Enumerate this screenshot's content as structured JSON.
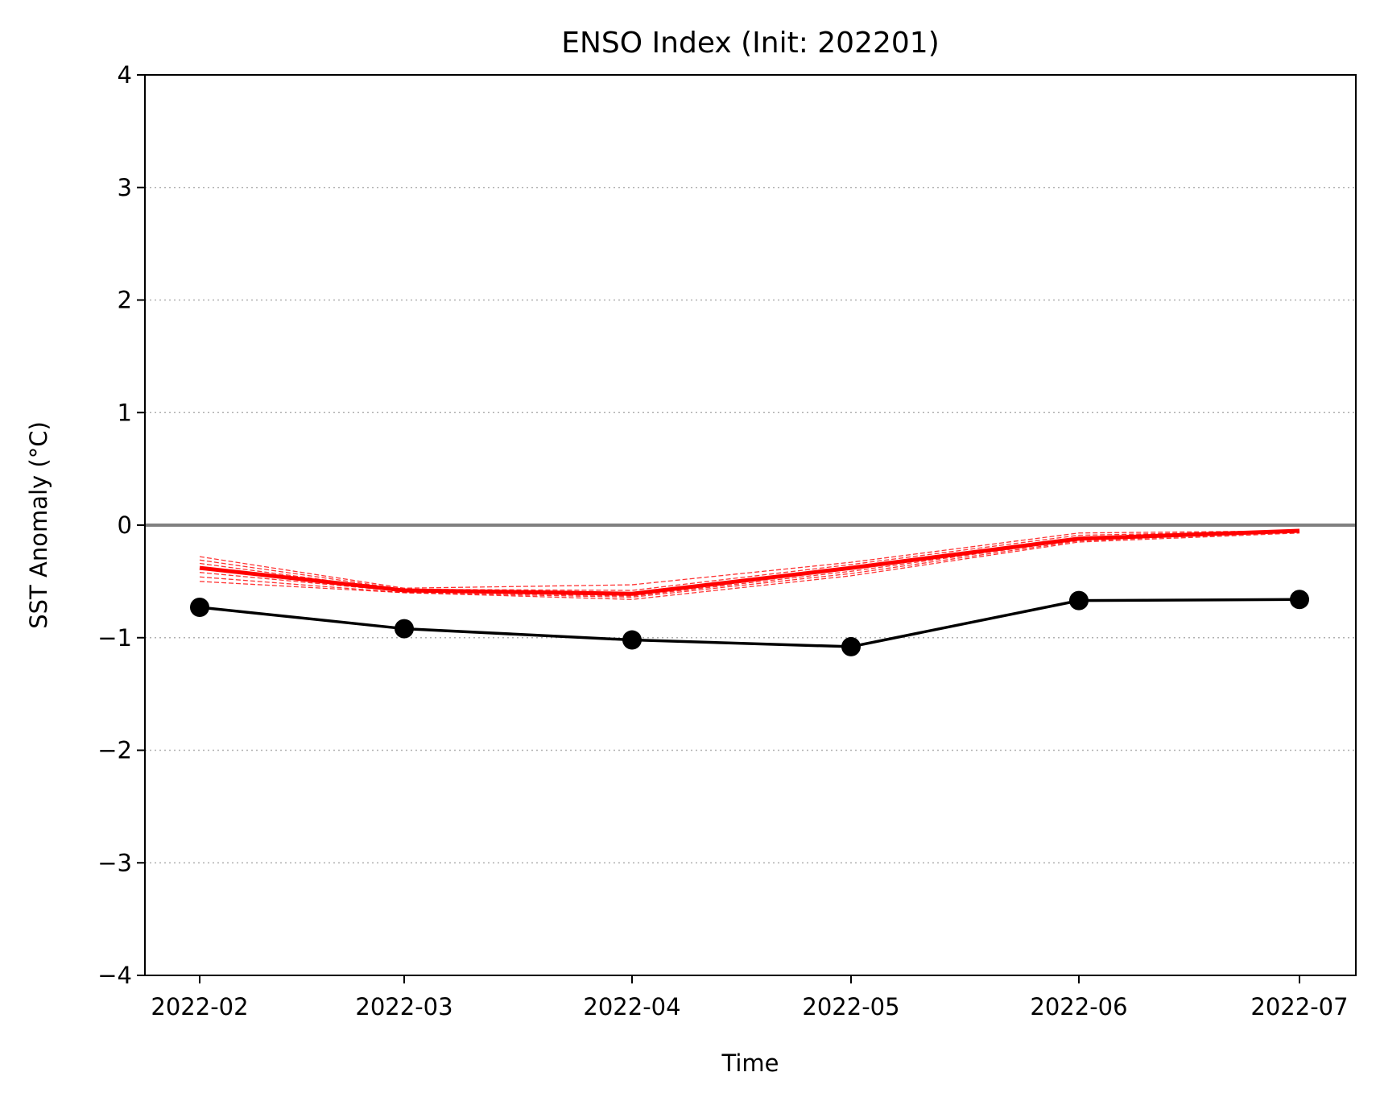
{
  "chart_data": {
    "type": "line",
    "title": "ENSO Index (Init: 202201)",
    "xlabel": "Time",
    "ylabel": "SST Anomaly (°C)",
    "categories": [
      "2022-02",
      "2022-03",
      "2022-04",
      "2022-05",
      "2022-06",
      "2022-07"
    ],
    "ylim": [
      -4,
      4
    ],
    "yticks": [
      4,
      3,
      2,
      1,
      0,
      -1,
      -2,
      -3,
      -4
    ],
    "ytick_labels": [
      "4",
      "3",
      "2",
      "1",
      "0",
      "−1",
      "−2",
      "−3",
      "−4"
    ],
    "grid": "horizontal dotted",
    "zero_line": true,
    "series": [
      {
        "color": "#000000",
        "style": "solid-markers",
        "values": [
          -0.73,
          -0.92,
          -1.02,
          -1.08,
          -0.67,
          -0.66
        ]
      },
      {
        "color": "#ff0000",
        "style": "solid-thick",
        "values": [
          -0.38,
          -0.58,
          -0.61,
          -0.38,
          -0.12,
          -0.05
        ]
      },
      {
        "color": "#ff0000",
        "style": "dashed",
        "members": [
          [
            -0.28,
            -0.56,
            -0.53,
            -0.33,
            -0.07,
            -0.05
          ],
          [
            -0.31,
            -0.57,
            -0.58,
            -0.35,
            -0.09,
            -0.05
          ],
          [
            -0.34,
            -0.58,
            -0.6,
            -0.37,
            -0.11,
            -0.05
          ],
          [
            -0.38,
            -0.58,
            -0.62,
            -0.39,
            -0.12,
            -0.06
          ],
          [
            -0.42,
            -0.59,
            -0.63,
            -0.41,
            -0.13,
            -0.06
          ],
          [
            -0.46,
            -0.6,
            -0.64,
            -0.43,
            -0.14,
            -0.06
          ],
          [
            -0.5,
            -0.6,
            -0.66,
            -0.45,
            -0.15,
            -0.07
          ]
        ]
      }
    ],
    "colors": {
      "zero_line": "#808080",
      "grid": "#b0b0b0",
      "frame": "#000000"
    }
  }
}
